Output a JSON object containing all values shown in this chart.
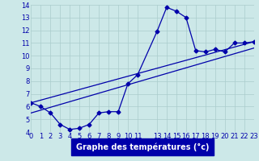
{
  "xlabel": "Graphe des températures (°c)",
  "bg_color": "#cce8e8",
  "grid_color": "#b8d8d8",
  "line_color": "#0000aa",
  "label_bg": "#0000aa",
  "label_fg": "#ffffff",
  "ylim": [
    4,
    14
  ],
  "xlim": [
    0,
    23
  ],
  "yticks": [
    4,
    5,
    6,
    7,
    8,
    9,
    10,
    11,
    12,
    13,
    14
  ],
  "xtick_pos": [
    0,
    1,
    2,
    3,
    4,
    5,
    6,
    7,
    8,
    9,
    10,
    11,
    13,
    14,
    15,
    16,
    17,
    18,
    19,
    20,
    21,
    22,
    23
  ],
  "xtick_labels": [
    "0",
    "1",
    "2",
    "3",
    "4",
    "5",
    "6",
    "7",
    "8",
    "9",
    "10",
    "11",
    "13",
    "14",
    "15",
    "16",
    "17",
    "18",
    "19",
    "20",
    "21",
    "22",
    "23"
  ],
  "curve_x": [
    0,
    1,
    2,
    3,
    4,
    5,
    6,
    7,
    8,
    9,
    10,
    11,
    13,
    14,
    15,
    16,
    17,
    18,
    19,
    20,
    21,
    22,
    23
  ],
  "curve_y": [
    6.3,
    6.0,
    5.5,
    4.6,
    4.2,
    4.3,
    4.6,
    5.5,
    5.6,
    5.6,
    7.8,
    8.5,
    11.9,
    13.8,
    13.5,
    13.0,
    10.4,
    10.3,
    10.5,
    10.3,
    11.0,
    11.0,
    11.1
  ],
  "line1_x": [
    0,
    23
  ],
  "line1_y": [
    6.3,
    11.1
  ],
  "line2_x": [
    0,
    23
  ],
  "line2_y": [
    5.5,
    10.6
  ],
  "tick_fontsize": 6.0,
  "label_fontsize": 7.0
}
